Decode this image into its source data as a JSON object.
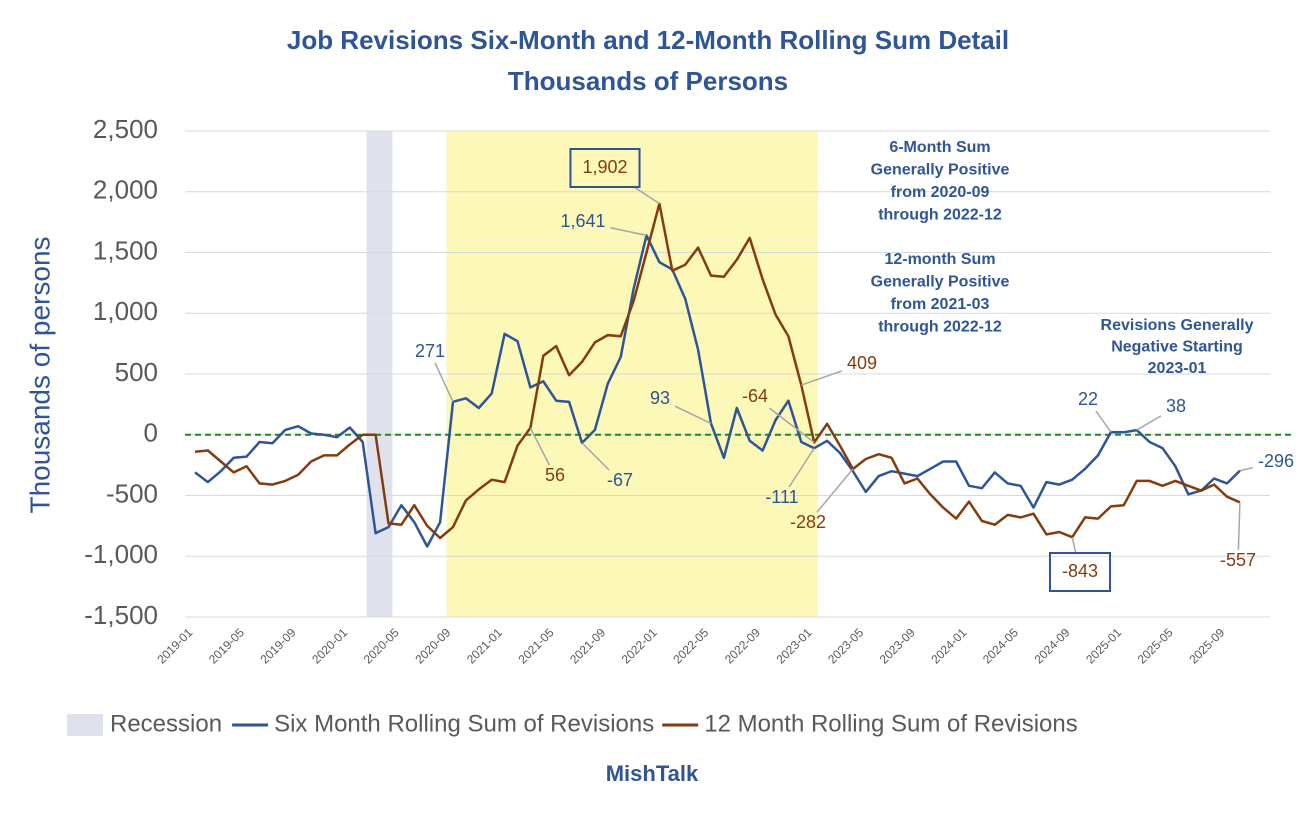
{
  "chart_data": {
    "type": "line",
    "title": "Job Revisions Six-Month and 12-Month Rolling Sum Detail",
    "subtitle": "Thousands of Persons",
    "y_label": "Thousands of persons",
    "footer": "MishTalk",
    "categories": [
      "2019-01",
      null,
      null,
      null,
      "2019-05",
      null,
      null,
      null,
      "2019-09",
      null,
      null,
      null,
      "2020-01",
      null,
      null,
      null,
      "2020-05",
      null,
      null,
      null,
      "2020-09",
      null,
      null,
      null,
      "2021-01",
      null,
      null,
      null,
      "2021-05",
      null,
      null,
      null,
      "2021-09",
      null,
      null,
      null,
      "2022-01",
      null,
      null,
      null,
      "2022-05",
      null,
      null,
      null,
      "2022-09",
      null,
      null,
      null,
      "2023-01",
      null,
      null,
      null,
      "2023-05",
      null,
      null,
      null,
      "2023-09",
      null,
      null,
      null,
      "2024-01",
      null,
      null,
      null,
      "2024-05",
      null,
      null,
      null,
      "2024-09",
      null,
      null,
      null,
      "2025-01",
      null,
      null,
      null,
      "2025-05",
      null,
      null,
      null,
      "2025-09",
      null
    ],
    "ylim": [
      -1500,
      2500
    ],
    "yticks": [
      {
        "value": -1500,
        "label": "-1,500"
      },
      {
        "value": -1000,
        "label": "-1,000"
      },
      -500,
      0,
      500,
      {
        "value": 1000,
        "label": "1,000"
      },
      {
        "value": 1500,
        "label": "1,500"
      },
      {
        "value": 2000,
        "label": "2,000"
      },
      {
        "value": 2500,
        "label": "2,500"
      }
    ],
    "grid": true,
    "zero_line_color": "#1e8a1e",
    "bands": [
      {
        "name": "Recession",
        "color": "#dfe2ec"
      },
      {
        "color": "#fcf8b8"
      }
    ],
    "series": [
      {
        "name": "Six Month Rolling Sum of Revisions",
        "color": "#2f5597",
        "values": [
          -310,
          -390,
          -300,
          -190,
          -180,
          -60,
          -70,
          40,
          70,
          10,
          0,
          -20,
          60,
          -60,
          -810,
          -760,
          -580,
          -720,
          -920,
          -720,
          271,
          300,
          220,
          340,
          830,
          770,
          390,
          440,
          280,
          270,
          -67,
          40,
          420,
          640,
          1200,
          1641,
          1420,
          1360,
          1120,
          700,
          93,
          -190,
          220,
          -50,
          -130,
          120,
          280,
          -60,
          -111,
          -50,
          -150,
          -300,
          -470,
          -340,
          -300,
          -320,
          -340,
          -280,
          -220,
          -220,
          -420,
          -440,
          -310,
          -400,
          -420,
          -600,
          -390,
          -410,
          -370,
          -280,
          -170,
          22,
          20,
          38,
          -60,
          -110,
          -260,
          -490,
          -460,
          -360,
          -400,
          -296
        ],
        "value_labels": [
          null,
          null,
          null,
          null,
          null,
          null,
          null,
          null,
          null,
          null,
          null,
          null,
          null,
          null,
          null,
          null,
          null,
          null,
          null,
          null,
          "271",
          null,
          null,
          null,
          null,
          null,
          null,
          null,
          null,
          null,
          "-67",
          null,
          null,
          null,
          null,
          "1,641",
          null,
          null,
          null,
          null,
          "93",
          null,
          null,
          null,
          null,
          null,
          null,
          null,
          "-111",
          null,
          null,
          null,
          null,
          null,
          null,
          null,
          null,
          null,
          null,
          null,
          null,
          null,
          null,
          null,
          null,
          null,
          null,
          null,
          null,
          null,
          null,
          "22",
          null,
          "38",
          null,
          null,
          null,
          null,
          null,
          null,
          null,
          "-296"
        ]
      },
      {
        "name": "12 Month Rolling Sum of Revisions",
        "color": "#843c0c",
        "values": [
          -140,
          -130,
          -220,
          -310,
          -260,
          -400,
          -410,
          -380,
          -330,
          -220,
          -170,
          -170,
          -80,
          0,
          0,
          -730,
          -740,
          -580,
          -750,
          -850,
          -760,
          -540,
          -450,
          -370,
          -390,
          -90,
          56,
          650,
          730,
          490,
          600,
          760,
          820,
          810,
          1100,
          1500,
          1902,
          1350,
          1400,
          1540,
          1310,
          1300,
          1440,
          1620,
          1280,
          990,
          810,
          409,
          -64,
          90,
          -90,
          -282,
          -200,
          -160,
          -190,
          -400,
          -360,
          -490,
          -600,
          -690,
          -550,
          -710,
          -740,
          -660,
          -680,
          -650,
          -820,
          -800,
          -843,
          -680,
          -690,
          -590,
          -580,
          -380,
          -380,
          -420,
          -380,
          -420,
          -460,
          -410,
          -510,
          -557
        ],
        "value_labels": [
          null,
          null,
          null,
          null,
          null,
          null,
          null,
          null,
          null,
          null,
          null,
          null,
          null,
          null,
          null,
          null,
          null,
          null,
          null,
          null,
          null,
          null,
          null,
          null,
          null,
          null,
          "56",
          null,
          null,
          null,
          null,
          null,
          null,
          null,
          null,
          null,
          "1,902",
          null,
          null,
          null,
          null,
          null,
          null,
          null,
          null,
          null,
          null,
          "409",
          "-64",
          null,
          null,
          "-282",
          null,
          null,
          null,
          null,
          null,
          null,
          null,
          null,
          null,
          null,
          null,
          null,
          null,
          null,
          null,
          null,
          "-843",
          null,
          null,
          null,
          null,
          null,
          null,
          null,
          null,
          null,
          null,
          null,
          null,
          "-557"
        ]
      }
    ],
    "annotations": [
      [
        "6-Month Sum",
        "Generally Positive",
        "from 2020-09",
        "through 2022-12"
      ],
      [
        "12-month Sum",
        "Generally Positive",
        "from 2021-03",
        "through 2022-12"
      ],
      [
        "Revisions Generally",
        "Negative Starting",
        "2023-01"
      ]
    ]
  }
}
